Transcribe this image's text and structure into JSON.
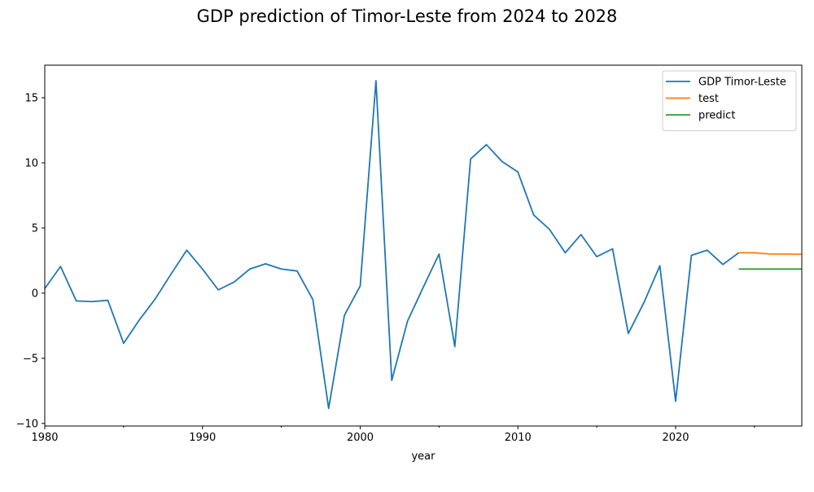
{
  "chart_data": {
    "type": "line",
    "title": "GDP prediction of Timor-Leste from 2024 to 2028",
    "xlabel": "year",
    "ylabel": "",
    "xlim": [
      1980,
      2028
    ],
    "ylim": [
      -10.2,
      17.5
    ],
    "x_ticks": [
      1980,
      1990,
      2000,
      2010,
      2020
    ],
    "y_ticks": [
      -10,
      -5,
      0,
      5,
      10,
      15
    ],
    "legend_position": "top-right",
    "grid": false,
    "series": [
      {
        "name": "GDP Timor-Leste",
        "color": "#1f77b4",
        "x": [
          1980,
          1981,
          1982,
          1983,
          1984,
          1985,
          1986,
          1987,
          1988,
          1989,
          1990,
          1991,
          1992,
          1993,
          1994,
          1995,
          1996,
          1997,
          1998,
          1999,
          2000,
          2001,
          2002,
          2003,
          2004,
          2005,
          2006,
          2007,
          2008,
          2009,
          2010,
          2011,
          2012,
          2013,
          2014,
          2015,
          2016,
          2017,
          2018,
          2019,
          2020,
          2021,
          2022,
          2023,
          2024
        ],
        "y": [
          0.35,
          2.05,
          -0.6,
          -0.65,
          -0.55,
          -3.85,
          -2.05,
          -0.45,
          1.45,
          3.3,
          1.85,
          0.25,
          0.85,
          1.85,
          2.25,
          1.85,
          1.7,
          -0.5,
          -8.85,
          -1.7,
          0.55,
          16.3,
          -6.7,
          -2.15,
          0.45,
          3.0,
          -4.1,
          10.3,
          11.4,
          10.1,
          9.3,
          6.0,
          4.9,
          3.1,
          4.5,
          2.8,
          3.4,
          -3.1,
          -0.7,
          2.1,
          -8.3,
          2.9,
          3.3,
          2.2,
          3.1
        ]
      },
      {
        "name": "test",
        "color": "#ff7f0e",
        "x": [
          2024,
          2025,
          2026,
          2027,
          2028
        ],
        "y": [
          3.1,
          3.1,
          3.0,
          3.0,
          2.98
        ]
      },
      {
        "name": "predict",
        "color": "#2ca02c",
        "x": [
          2024,
          2025,
          2026,
          2027,
          2028
        ],
        "y": [
          1.85,
          1.85,
          1.85,
          1.85,
          1.85
        ]
      }
    ]
  }
}
